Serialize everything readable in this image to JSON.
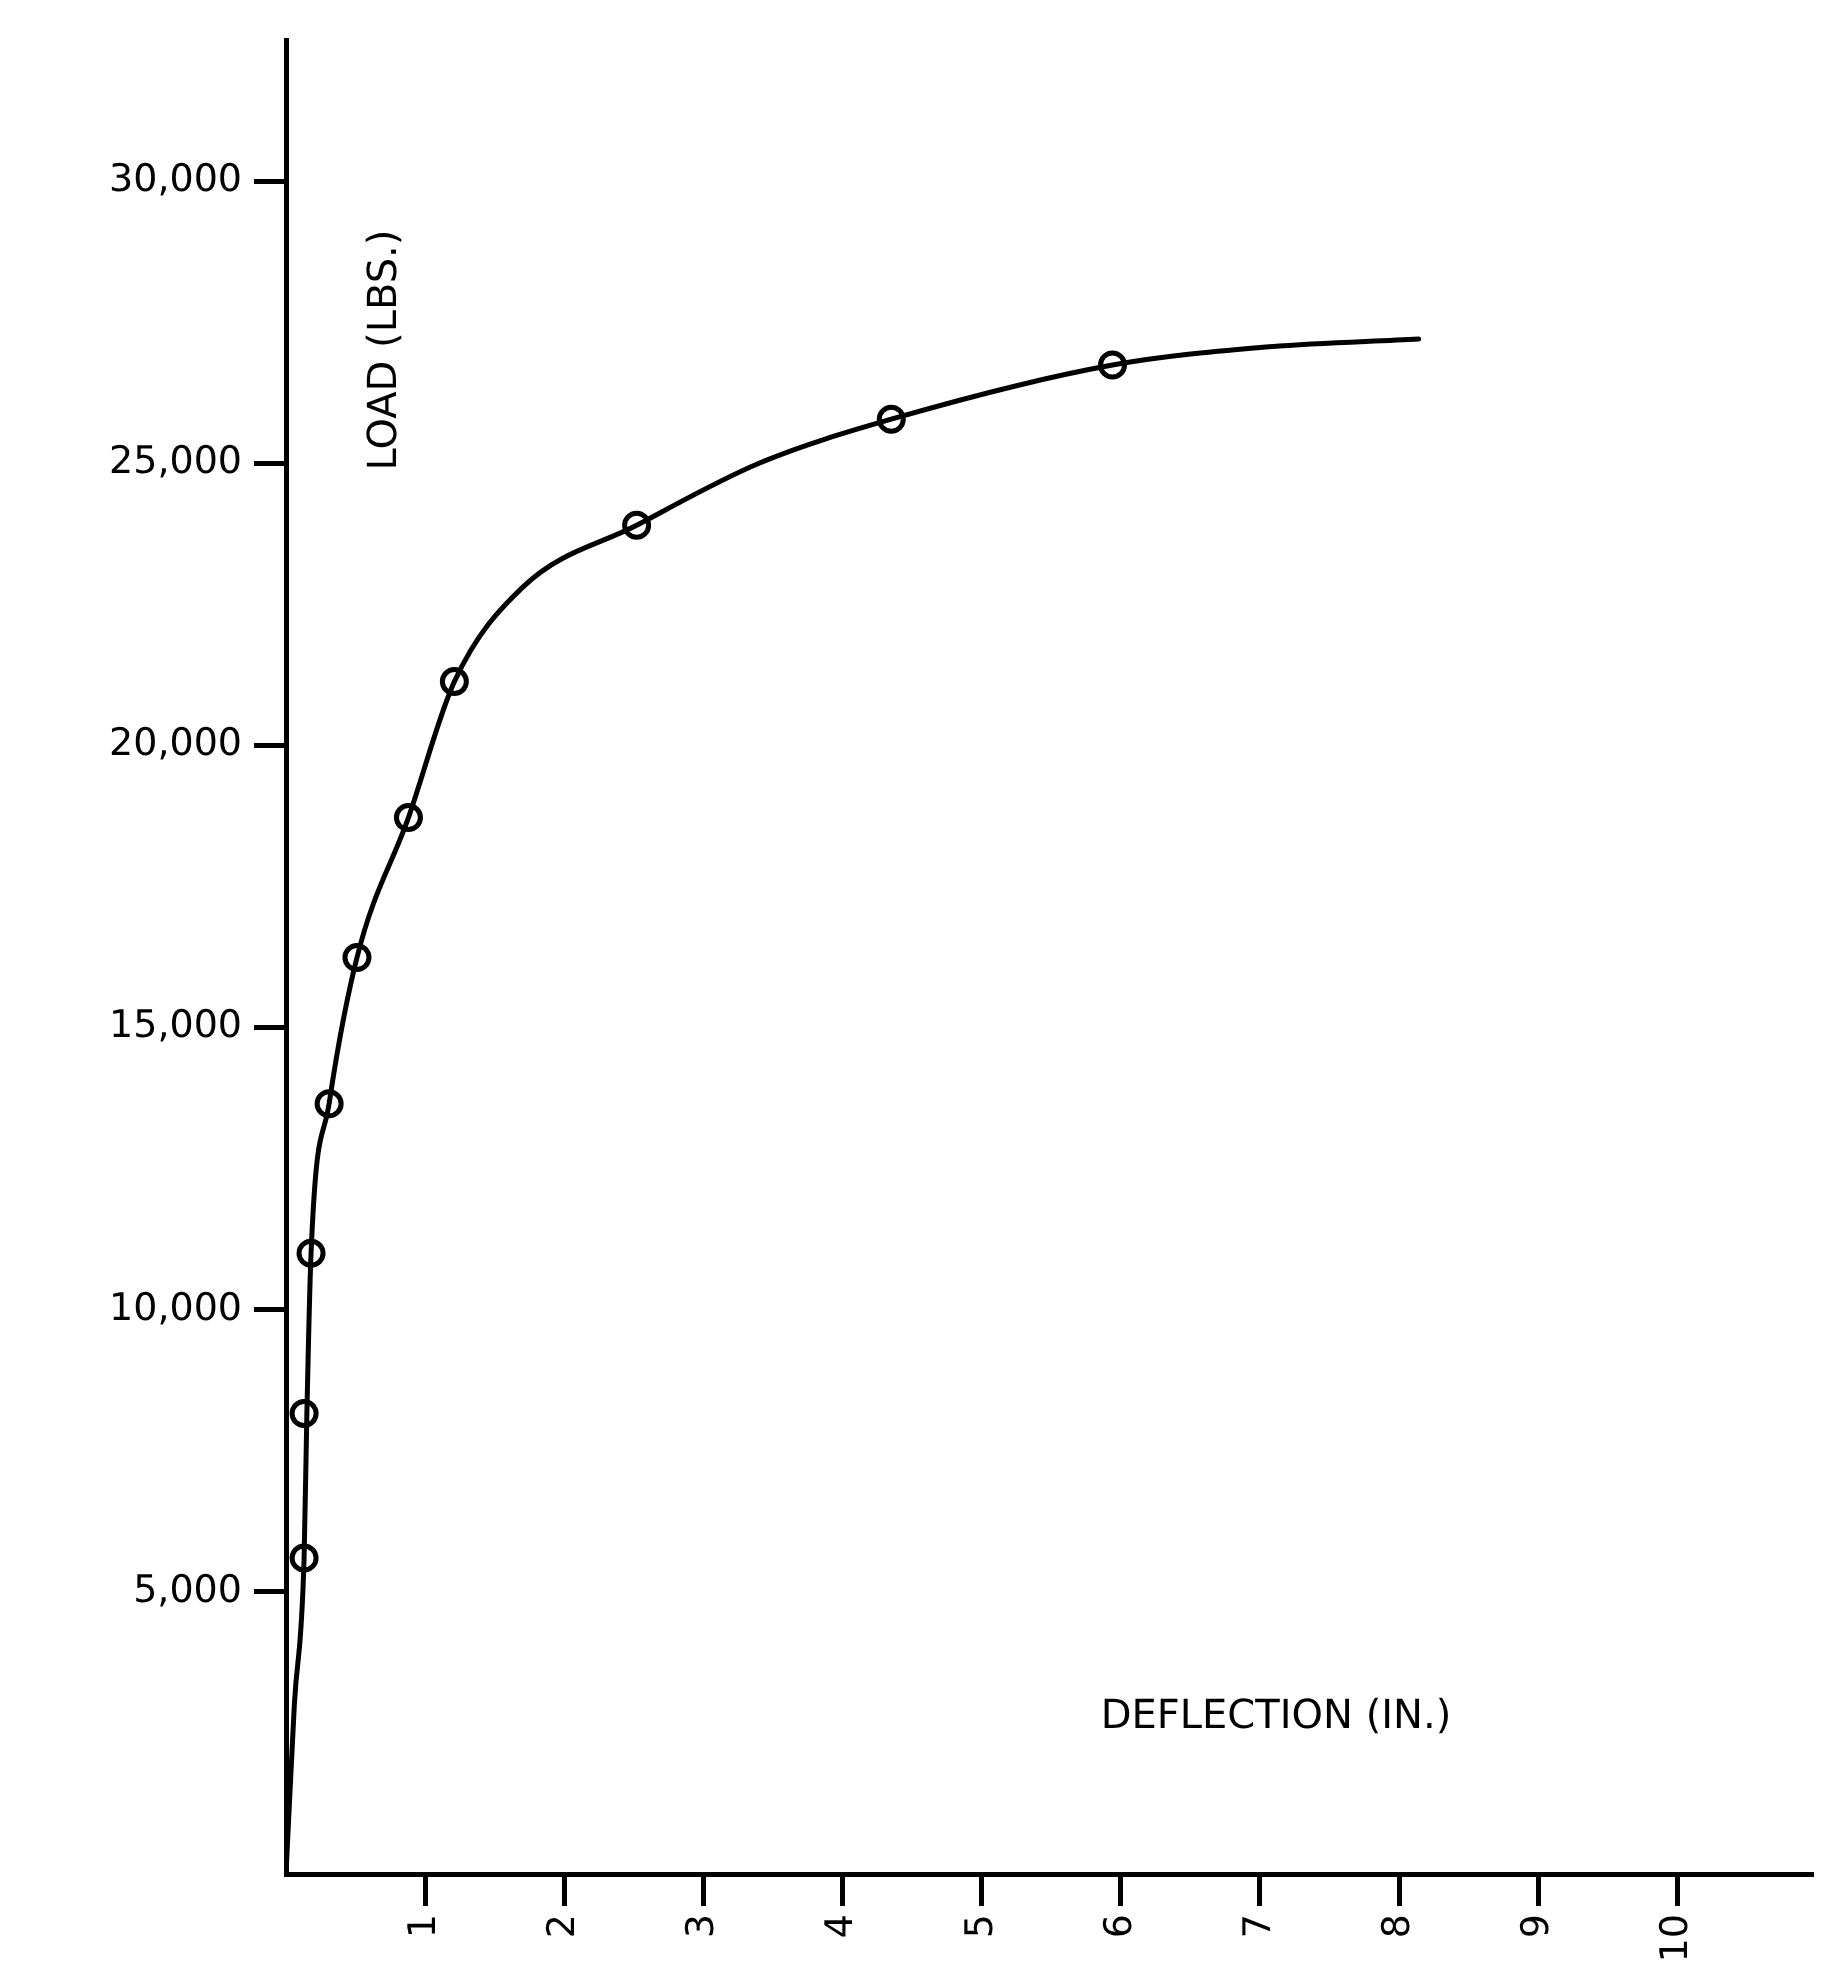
{
  "chart_data": {
    "type": "scatter",
    "xlabel": "DEFLECTION (IN.)",
    "ylabel": "LOAD (LBS.)",
    "xlim": [
      0,
      10.96
    ],
    "ylim": [
      0,
      32500
    ],
    "xticks": [
      1,
      2,
      3,
      4,
      5,
      6,
      7,
      8,
      9,
      10
    ],
    "yticks": [
      {
        "value": 5000,
        "label": "5,000"
      },
      {
        "value": 10000,
        "label": "10,000"
      },
      {
        "value": 15000,
        "label": "15,000"
      },
      {
        "value": 20000,
        "label": "20,000"
      },
      {
        "value": 25000,
        "label": "25,000"
      },
      {
        "value": 30000,
        "label": "30,000"
      }
    ],
    "series": [
      {
        "type": "line",
        "color": "#000000",
        "marker": "none",
        "x": [
          0,
          0.06,
          0.13,
          0.15,
          0.18,
          0.31,
          0.51,
          0.88,
          1.21,
          1.7,
          2.52,
          3.4,
          4.35,
          5.94,
          7,
          8.14
        ],
        "values": [
          0,
          3000,
          5600,
          8160,
          11000,
          13650,
          16240,
          18720,
          21130,
          22800,
          23900,
          25000,
          25780,
          26740,
          27050,
          27200
        ]
      },
      {
        "color": "#000000",
        "marker": "circle",
        "x": [
          0.13,
          0.13,
          0.18,
          0.31,
          0.51,
          0.88,
          1.21,
          2.52,
          4.35,
          5.94
        ],
        "values": [
          5600,
          8160,
          11000,
          13650,
          16240,
          18720,
          21130,
          23900,
          25780,
          26740
        ]
      }
    ]
  }
}
